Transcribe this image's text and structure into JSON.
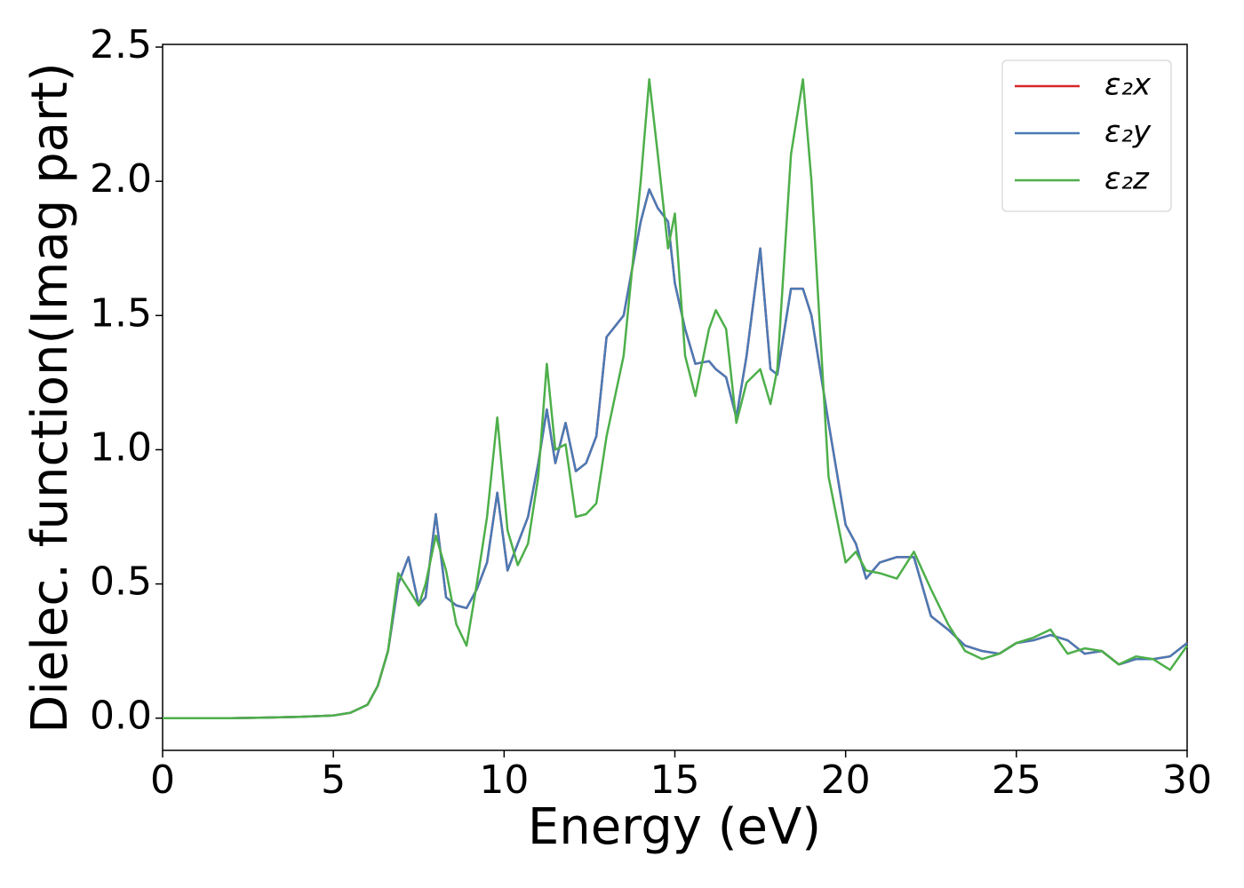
{
  "chart_data": {
    "type": "line",
    "x_label": "Energy (eV)",
    "y_label": "Dielec. function(Imag part)",
    "x": [
      0,
      1,
      2,
      3,
      4,
      5,
      5.5,
      6,
      6.3,
      6.6,
      6.9,
      7.2,
      7.5,
      7.7,
      8.0,
      8.3,
      8.6,
      8.9,
      9.2,
      9.5,
      9.8,
      10.1,
      10.4,
      10.7,
      11.0,
      11.25,
      11.5,
      11.8,
      12.1,
      12.4,
      12.7,
      13.0,
      13.5,
      14.0,
      14.25,
      14.5,
      14.8,
      15.0,
      15.3,
      15.6,
      16.0,
      16.2,
      16.5,
      16.8,
      17.1,
      17.5,
      17.8,
      18.0,
      18.4,
      18.75,
      19.0,
      19.5,
      20.0,
      20.3,
      20.6,
      21.0,
      21.5,
      22.0,
      22.5,
      23.0,
      23.5,
      24.0,
      24.5,
      25.0,
      25.5,
      26.0,
      26.5,
      27.0,
      27.5,
      28.0,
      28.5,
      29.0,
      29.5,
      30.0
    ],
    "series": [
      {
        "name": "ε₂x",
        "color": "#d62728",
        "values": [
          0,
          0,
          0,
          0.002,
          0.005,
          0.01,
          0.02,
          0.05,
          0.12,
          0.25,
          0.5,
          0.6,
          0.42,
          0.45,
          0.76,
          0.45,
          0.42,
          0.41,
          0.48,
          0.58,
          0.84,
          0.55,
          0.65,
          0.75,
          0.95,
          1.15,
          0.95,
          1.1,
          0.92,
          0.95,
          1.05,
          1.42,
          1.5,
          1.85,
          1.97,
          1.9,
          1.85,
          1.62,
          1.45,
          1.32,
          1.33,
          1.3,
          1.27,
          1.12,
          1.35,
          1.75,
          1.3,
          1.28,
          1.6,
          1.6,
          1.5,
          1.1,
          0.72,
          0.65,
          0.52,
          0.58,
          0.6,
          0.6,
          0.38,
          0.33,
          0.27,
          0.25,
          0.24,
          0.28,
          0.29,
          0.31,
          0.29,
          0.24,
          0.25,
          0.2,
          0.22,
          0.22,
          0.23,
          0.28
        ]
      },
      {
        "name": "ε₂y",
        "color": "#4a7ab5",
        "values": [
          0,
          0,
          0,
          0.002,
          0.005,
          0.01,
          0.02,
          0.05,
          0.12,
          0.25,
          0.5,
          0.6,
          0.42,
          0.45,
          0.76,
          0.45,
          0.42,
          0.41,
          0.48,
          0.58,
          0.84,
          0.55,
          0.65,
          0.75,
          0.95,
          1.15,
          0.95,
          1.1,
          0.92,
          0.95,
          1.05,
          1.42,
          1.5,
          1.85,
          1.97,
          1.9,
          1.85,
          1.62,
          1.45,
          1.32,
          1.33,
          1.3,
          1.27,
          1.12,
          1.35,
          1.75,
          1.3,
          1.28,
          1.6,
          1.6,
          1.5,
          1.1,
          0.72,
          0.65,
          0.52,
          0.58,
          0.6,
          0.6,
          0.38,
          0.33,
          0.27,
          0.25,
          0.24,
          0.28,
          0.29,
          0.31,
          0.29,
          0.24,
          0.25,
          0.2,
          0.22,
          0.22,
          0.23,
          0.28
        ]
      },
      {
        "name": "ε₂z",
        "color": "#4daf4a",
        "values": [
          0,
          0,
          0,
          0.002,
          0.005,
          0.01,
          0.02,
          0.05,
          0.12,
          0.25,
          0.54,
          0.48,
          0.42,
          0.5,
          0.68,
          0.55,
          0.35,
          0.27,
          0.5,
          0.75,
          1.12,
          0.7,
          0.57,
          0.65,
          0.9,
          1.32,
          1.0,
          1.02,
          0.75,
          0.76,
          0.8,
          1.05,
          1.35,
          2.0,
          2.38,
          2.1,
          1.75,
          1.88,
          1.35,
          1.2,
          1.45,
          1.52,
          1.45,
          1.1,
          1.25,
          1.3,
          1.17,
          1.3,
          2.1,
          2.38,
          2.0,
          0.9,
          0.58,
          0.62,
          0.55,
          0.54,
          0.52,
          0.62,
          0.48,
          0.35,
          0.25,
          0.22,
          0.24,
          0.28,
          0.3,
          0.33,
          0.24,
          0.26,
          0.25,
          0.2,
          0.23,
          0.22,
          0.18,
          0.27
        ]
      }
    ],
    "xlim": [
      0,
      30
    ],
    "xticks": [
      0,
      5,
      10,
      15,
      20,
      25,
      30
    ],
    "ylim": [
      -0.12,
      2.51
    ],
    "yticks": [
      {
        "value": 0,
        "label": "0.0"
      },
      0.5,
      {
        "value": 1,
        "label": "1.0"
      },
      1.5,
      {
        "value": 2,
        "label": "2.0"
      },
      2.5
    ],
    "legend": "upper right",
    "grid": false
  }
}
